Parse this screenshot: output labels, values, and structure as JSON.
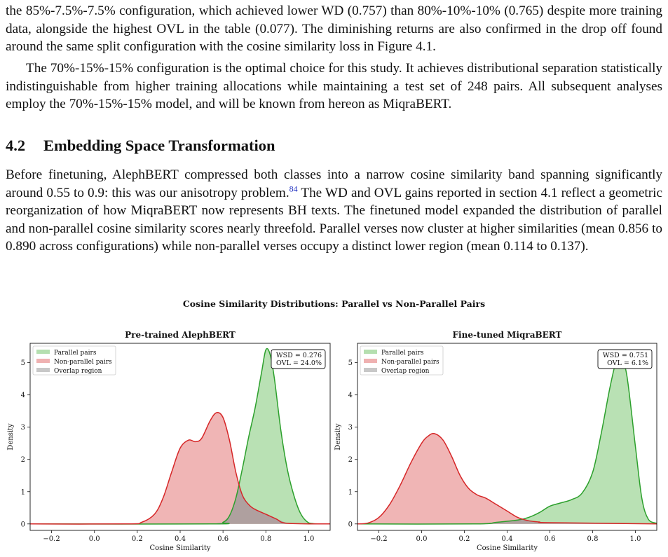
{
  "paragraphs": {
    "p1": "the 85%-7.5%-7.5% configuration, which achieved lower WD (0.757) than 80%-10%-10% (0.765) despite more training data, alongside the highest OVL in the table (0.077). The diminishing returns are also confirmed in the drop off found around the same split configuration with the cosine similarity loss in Figure 4.1.",
    "p2": "The 70%-15%-15% configuration is the optimal choice for this study. It achieves distributional separation statistically indistinguishable from higher training allocations while maintaining a test set of 248 pairs. All subsequent analyses employ the 70%-15%-15% model, and will be known from hereon as MiqraBERT.",
    "p3_a": "Before finetuning, AlephBERT compressed both classes into a narrow cosine similarity band spanning significantly around 0.55 to 0.9: this was our anisotropy problem.",
    "p3_footnote": "84",
    "p3_b": " The WD and OVL gains reported in section 4.1 reflect a geometric reorganization of how MiqraBERT now represents BH texts. The finetuned model expanded the distribution of parallel and non-parallel cosine similarity scores nearly threefold. Parallel verses now cluster at higher similarities (mean 0.856 to 0.890 across configurations) while non-parallel verses occupy a distinct lower region (mean 0.114 to 0.137)."
  },
  "section": {
    "number": "4.2",
    "title": "Embedding Space Transformation"
  },
  "figure": {
    "title": "Cosine Similarity Distributions: Parallel vs Non-Parallel Pairs"
  },
  "chart_data": [
    {
      "type": "area",
      "title": "Pre-trained AlephBERT",
      "xlabel": "Cosine Similarity",
      "ylabel": "Density",
      "xlim": [
        -0.3,
        1.1
      ],
      "ylim": [
        -0.2,
        5.6
      ],
      "xticks": [
        "−0.2",
        "0.0",
        "0.2",
        "0.4",
        "0.6",
        "0.8",
        "1.0"
      ],
      "xtick_values": [
        -0.2,
        0.0,
        0.2,
        0.4,
        0.6,
        0.8,
        1.0
      ],
      "yticks": [
        "0",
        "1",
        "2",
        "3",
        "4",
        "5"
      ],
      "ytick_values": [
        0,
        1,
        2,
        3,
        4,
        5
      ],
      "annotation": [
        "WSD = 0.276",
        "OVL = 24.0%"
      ],
      "legend_position": "top-left",
      "series": [
        {
          "name": "Parallel pairs",
          "color": "#2ca02c",
          "fill": "#b5dfb0",
          "x": [
            -0.3,
            0.55,
            0.6,
            0.63,
            0.66,
            0.69,
            0.72,
            0.75,
            0.78,
            0.8,
            0.82,
            0.84,
            0.87,
            0.9,
            0.93,
            0.96,
            0.99,
            1.02,
            1.1
          ],
          "y": [
            0,
            0,
            0.05,
            0.25,
            0.8,
            1.7,
            2.7,
            3.6,
            4.7,
            5.4,
            5.25,
            4.5,
            2.9,
            1.7,
            0.9,
            0.35,
            0.08,
            0.01,
            0
          ]
        },
        {
          "name": "Non-parallel pairs",
          "color": "#d62728",
          "fill": "#efb1b1",
          "x": [
            -0.3,
            0.15,
            0.22,
            0.28,
            0.32,
            0.36,
            0.4,
            0.44,
            0.47,
            0.5,
            0.54,
            0.57,
            0.6,
            0.63,
            0.66,
            0.69,
            0.72,
            0.75,
            0.8,
            0.85,
            0.9,
            1.1
          ],
          "y": [
            0,
            0,
            0.05,
            0.3,
            0.8,
            1.6,
            2.35,
            2.6,
            2.55,
            2.65,
            3.2,
            3.45,
            3.3,
            2.6,
            1.6,
            0.9,
            0.6,
            0.45,
            0.3,
            0.15,
            0.02,
            0
          ]
        }
      ],
      "overlap": {
        "name": "Overlap region",
        "color": "#999999"
      }
    },
    {
      "type": "area",
      "title": "Fine-tuned MiqraBERT",
      "xlabel": "Cosine Similarity",
      "ylabel": "Density",
      "xlim": [
        -0.3,
        1.1
      ],
      "ylim": [
        -0.2,
        5.6
      ],
      "xticks": [
        "−0.2",
        "0.0",
        "0.2",
        "0.4",
        "0.6",
        "0.8",
        "1.0"
      ],
      "xtick_values": [
        -0.2,
        0.0,
        0.2,
        0.4,
        0.6,
        0.8,
        1.0
      ],
      "yticks": [
        "0",
        "1",
        "2",
        "3",
        "4",
        "5"
      ],
      "ytick_values": [
        0,
        1,
        2,
        3,
        4,
        5
      ],
      "annotation": [
        "WSD = 0.751",
        "OVL = 6.1%"
      ],
      "legend_position": "top-left",
      "series": [
        {
          "name": "Parallel pairs",
          "color": "#2ca02c",
          "fill": "#b5dfb0",
          "x": [
            -0.3,
            0.25,
            0.35,
            0.45,
            0.5,
            0.55,
            0.6,
            0.65,
            0.7,
            0.75,
            0.8,
            0.84,
            0.88,
            0.91,
            0.93,
            0.96,
            1.0,
            1.03,
            1.06,
            1.1
          ],
          "y": [
            0,
            0,
            0.05,
            0.12,
            0.2,
            0.35,
            0.55,
            0.65,
            0.75,
            0.95,
            1.6,
            2.8,
            4.2,
            5.05,
            5.2,
            4.6,
            2.4,
            0.8,
            0.15,
            0.02
          ]
        },
        {
          "name": "Non-parallel pairs",
          "color": "#d62728",
          "fill": "#efb1b1",
          "x": [
            -0.3,
            -0.25,
            -0.2,
            -0.15,
            -0.1,
            -0.05,
            0.0,
            0.03,
            0.06,
            0.1,
            0.14,
            0.18,
            0.22,
            0.26,
            0.3,
            0.35,
            0.4,
            0.45,
            0.5,
            0.55,
            0.6,
            1.1
          ],
          "y": [
            0,
            0.03,
            0.2,
            0.6,
            1.2,
            1.9,
            2.5,
            2.72,
            2.8,
            2.6,
            2.1,
            1.5,
            1.1,
            0.9,
            0.8,
            0.6,
            0.4,
            0.2,
            0.1,
            0.06,
            0.04,
            0
          ]
        }
      ],
      "overlap": {
        "name": "Overlap region",
        "color": "#999999"
      }
    }
  ]
}
